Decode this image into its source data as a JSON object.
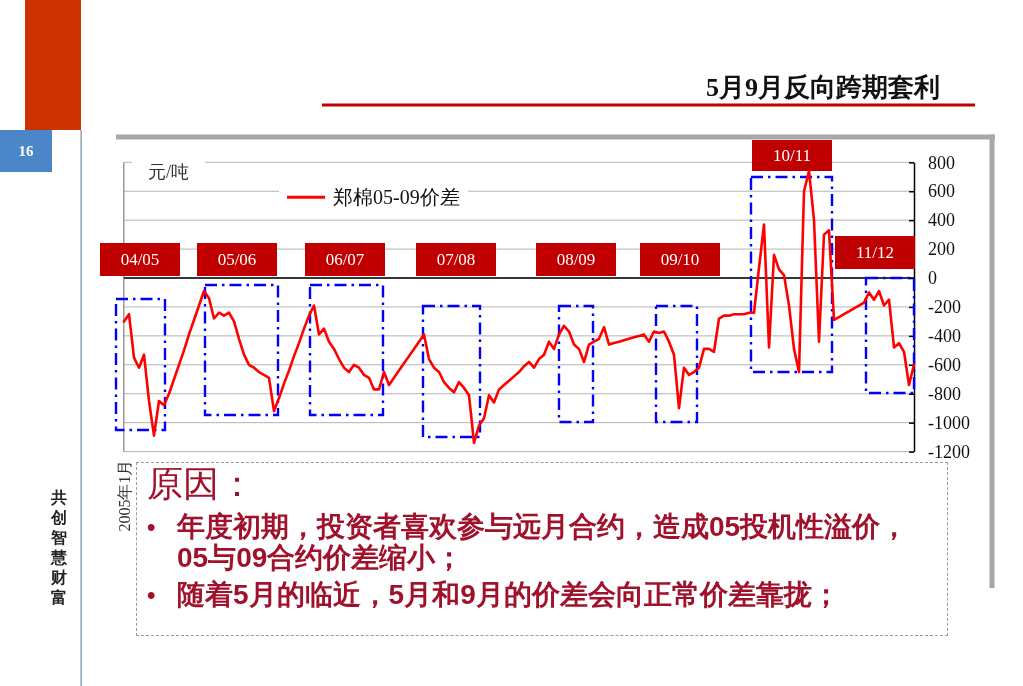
{
  "chart_data": {
    "type": "line",
    "title": "5月9月反向跨期套利",
    "ylabel": "元/吨",
    "categories": [
      "2005年1月",
      null,
      null,
      null,
      null,
      null,
      null,
      null,
      null,
      null,
      null,
      null,
      null,
      null,
      null,
      null,
      null,
      null,
      null,
      null,
      null,
      null,
      null,
      null,
      null,
      null,
      null,
      null,
      null,
      null,
      null,
      null,
      null,
      null,
      null,
      null,
      null,
      null,
      null,
      null,
      null,
      null,
      null,
      null,
      null,
      null,
      null,
      null,
      null,
      null,
      null,
      null,
      null,
      null,
      null,
      null,
      null,
      null,
      null,
      null,
      null,
      null,
      null,
      null,
      null,
      null,
      null,
      null,
      null,
      null,
      null,
      null,
      null,
      null,
      null,
      null,
      null,
      null,
      null,
      null,
      null,
      null,
      null,
      null,
      null,
      null,
      null,
      null,
      null,
      null,
      null,
      null,
      null,
      null,
      null,
      null,
      null,
      null,
      null,
      null,
      null,
      null,
      null,
      null,
      null,
      null,
      null,
      null,
      null,
      null,
      null,
      null,
      null,
      null,
      null,
      null,
      null,
      null,
      null,
      null,
      null,
      null,
      null,
      null,
      null,
      null,
      null,
      null,
      null,
      null,
      null,
      null,
      null,
      null,
      null,
      null,
      null,
      null,
      null,
      null,
      null,
      null,
      null,
      null,
      null,
      null,
      null,
      null,
      null,
      null,
      null,
      null,
      null,
      null,
      null,
      null,
      null,
      null,
      null
    ],
    "series": [
      {
        "name": "郑棉05-09价差",
        "color": "#ff0000",
        "values": [
          -300,
          -250,
          -550,
          -620,
          -530,
          -850,
          -1090,
          -850,
          -880,
          -800,
          -700,
          -600,
          -500,
          -390,
          -290,
          -190,
          -90,
          -140,
          -280,
          -240,
          -260,
          -240,
          -300,
          -420,
          -530,
          -600,
          -620,
          -650,
          -670,
          -690,
          -920,
          -830,
          -730,
          -640,
          -540,
          -450,
          -350,
          -260,
          -190,
          -390,
          -350,
          -440,
          -490,
          -560,
          -620,
          -650,
          -600,
          -620,
          -670,
          -690,
          -770,
          -770,
          -650,
          -740,
          -690,
          -640,
          -590,
          -540,
          -490,
          -440,
          -390,
          -560,
          -620,
          -650,
          -720,
          -760,
          -790,
          -720,
          -760,
          -810,
          -1140,
          -1020,
          -970,
          -810,
          -860,
          -770,
          -740,
          -710,
          -680,
          -650,
          -610,
          -580,
          -620,
          -560,
          -530,
          -440,
          -490,
          -390,
          -330,
          -370,
          -460,
          -490,
          -580,
          -460,
          -440,
          -420,
          -340,
          -460,
          -450,
          -440,
          -430,
          -420,
          -410,
          -400,
          -390,
          -440,
          -370,
          -380,
          -370,
          -440,
          -530,
          -900,
          -620,
          -670,
          -650,
          -620,
          -490,
          -490,
          -510,
          -280,
          -260,
          -260,
          -250,
          -250,
          -250,
          -240,
          -240,
          70,
          370,
          -480,
          160,
          60,
          20,
          -190,
          -490,
          -650,
          600,
          740,
          400,
          -440,
          300,
          330,
          -290,
          -270,
          -250,
          -230,
          -210,
          -190,
          -170,
          -100,
          -150,
          -90,
          -190,
          -150,
          -480,
          -450,
          -510,
          -740,
          -600
        ]
      }
    ],
    "ylim": [
      -1200,
      800
    ],
    "yticks": [
      -1200,
      -1000,
      -800,
      -600,
      -400,
      -200,
      0,
      200,
      400,
      600,
      800
    ],
    "grid": "y",
    "legend": "top left",
    "annotations": [
      "04/05",
      "05/06",
      "06/07",
      "07/08",
      "08/09",
      "09/10",
      "10/11",
      "11/12",
      "16",
      "共创智慧财富",
      "原因：",
      "• 年度初期，投资者喜欢参与远月合约，造成05投机性溢价，05与09合约价差缩小；",
      "• 随着5月的临近，5月和9月的价差会向正常价差靠拢；"
    ]
  }
}
